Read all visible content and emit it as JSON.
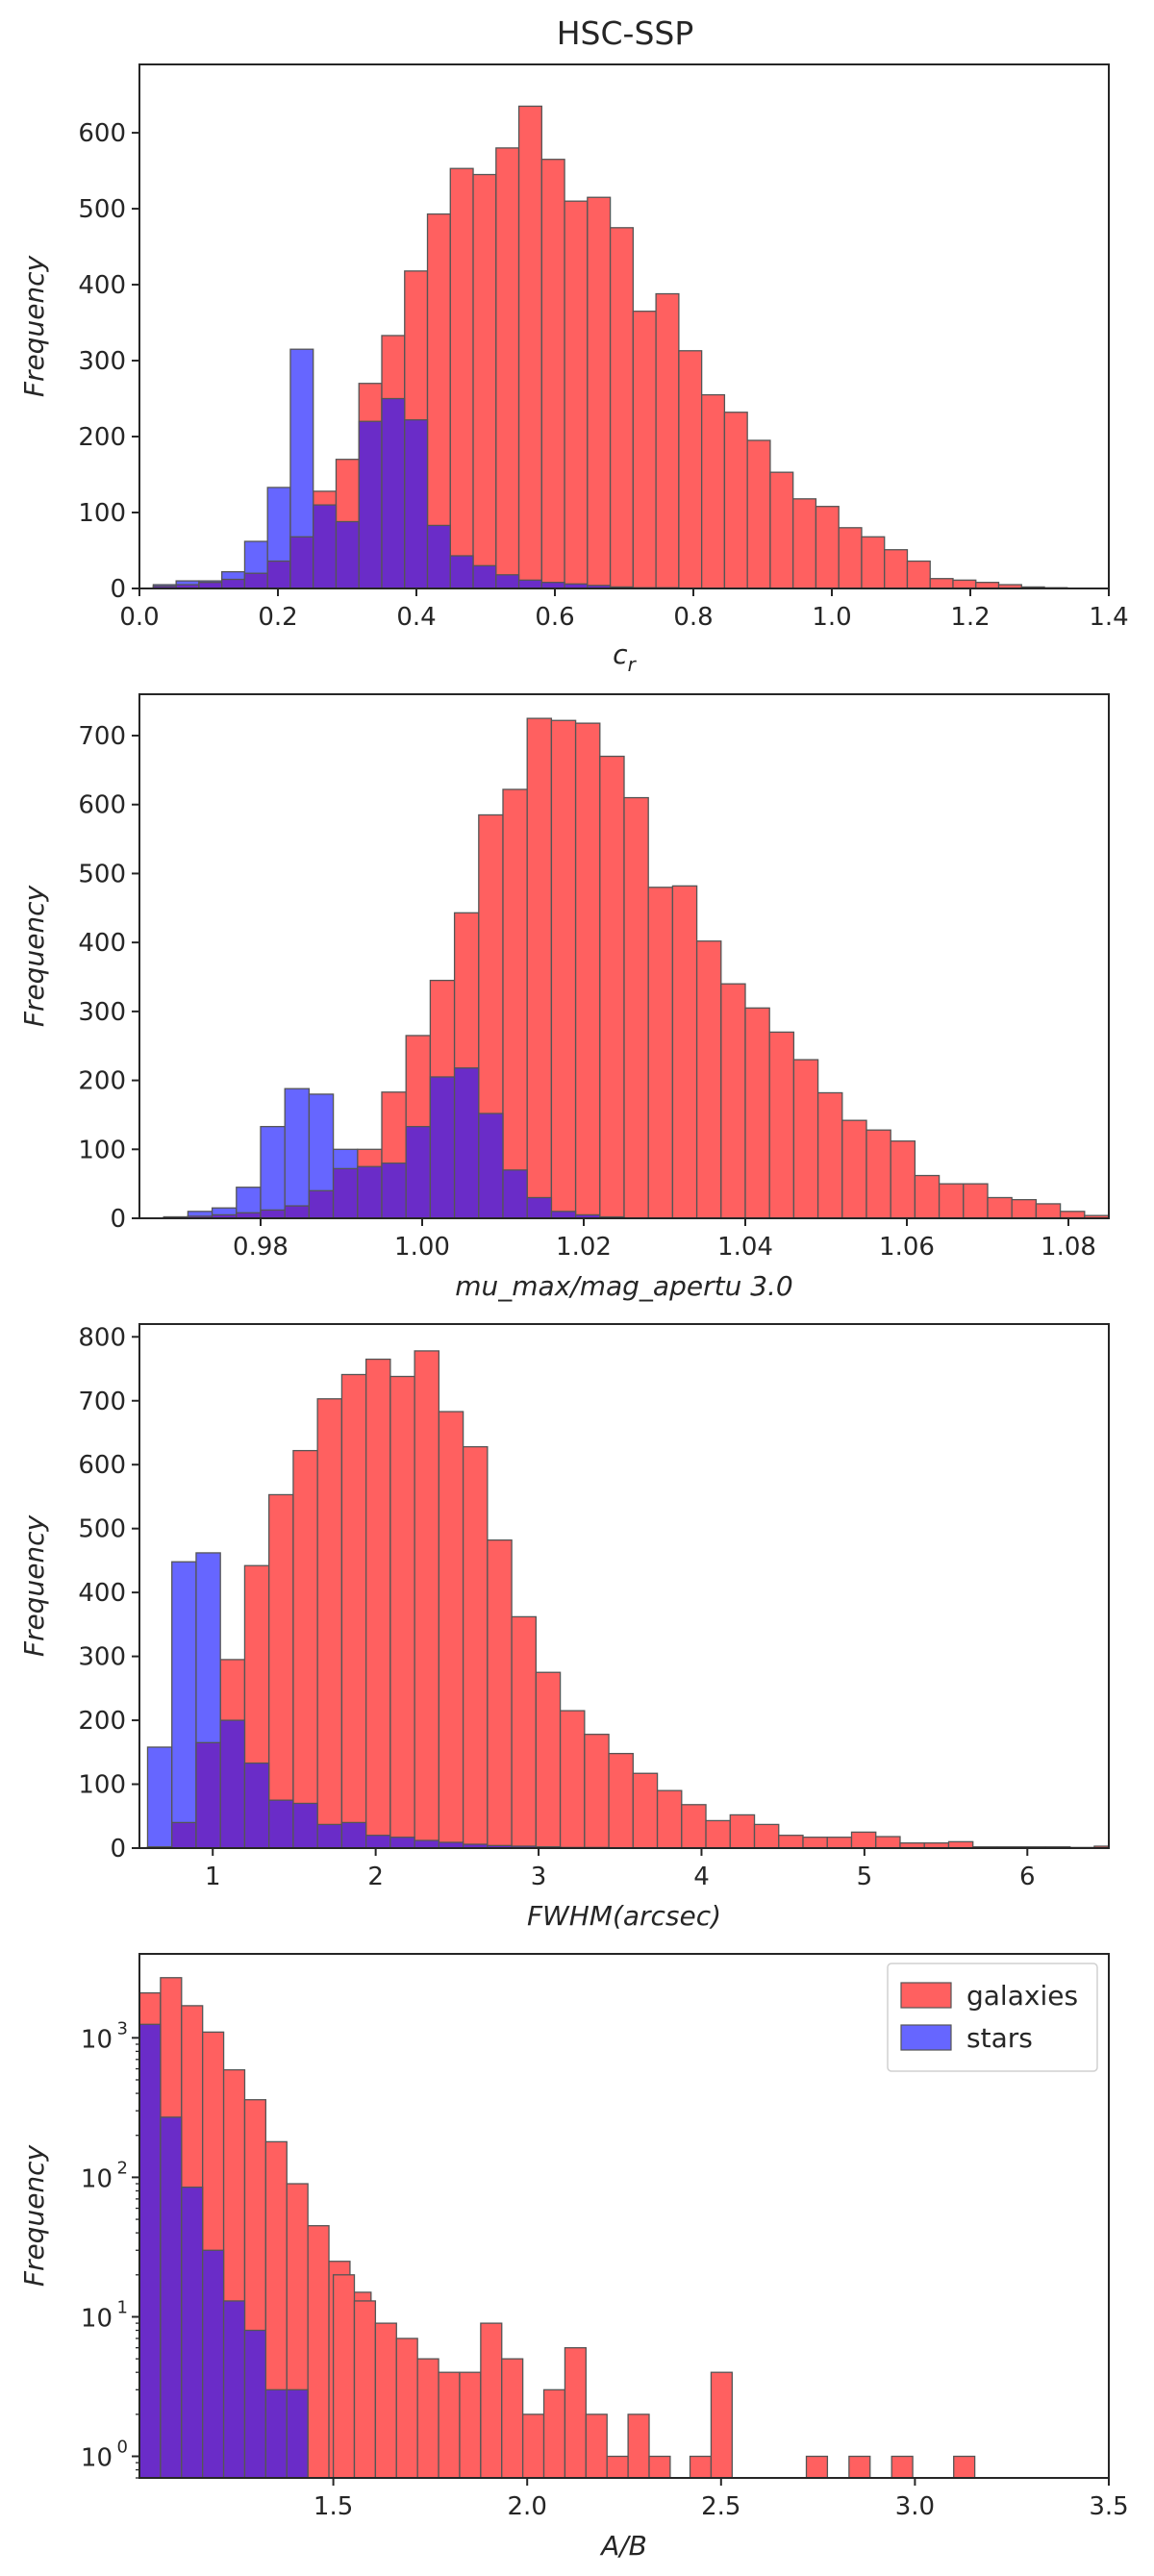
{
  "colors": {
    "galaxies": "#ff6060",
    "stars": "#6666ff",
    "overlap": "#6a2cc8",
    "edge": "#555555",
    "frame": "#262626"
  },
  "chart_data": [
    {
      "type": "bar",
      "title": "HSC-SSP",
      "xlabel_main": "c",
      "xlabel_sub": "r",
      "ylabel": "Frequency",
      "xlim": [
        0.0,
        1.4
      ],
      "ylim": [
        0,
        690
      ],
      "xticks": [
        "0.0",
        "0.2",
        "0.4",
        "0.6",
        "0.8",
        "1.0",
        "1.2",
        "1.4"
      ],
      "xtick_values": [
        0.0,
        0.2,
        0.4,
        0.6,
        0.8,
        1.0,
        1.2,
        1.4
      ],
      "yticks": [
        "0",
        "100",
        "200",
        "300",
        "400",
        "500",
        "600"
      ],
      "ytick_values": [
        0,
        100,
        200,
        300,
        400,
        500,
        600
      ],
      "yscale": "linear",
      "grid": false,
      "series": [
        {
          "name": "galaxies",
          "bin_start": 0.02,
          "bin_width": 0.033,
          "values": [
            3,
            5,
            8,
            12,
            20,
            36,
            68,
            128,
            170,
            270,
            333,
            418,
            493,
            553,
            545,
            580,
            635,
            565,
            510,
            515,
            475,
            365,
            388,
            313,
            255,
            232,
            195,
            153,
            118,
            108,
            80,
            68,
            51,
            36,
            13,
            11,
            8,
            5,
            2,
            1
          ]
        },
        {
          "name": "stars",
          "bin_start": 0.02,
          "bin_width": 0.033,
          "values": [
            5,
            10,
            10,
            22,
            62,
            133,
            315,
            110,
            88,
            220,
            250,
            222,
            83,
            43,
            30,
            18,
            11,
            8,
            6,
            4,
            2,
            1,
            1,
            0,
            0,
            0,
            0,
            0,
            0,
            0,
            0,
            0,
            0,
            0,
            0,
            0,
            0,
            0,
            0,
            0
          ]
        }
      ]
    },
    {
      "type": "bar",
      "xlabel": "mu_max/mag_apertu 3.0",
      "ylabel": "Frequency",
      "xlim": [
        0.965,
        1.085
      ],
      "ylim": [
        0,
        760
      ],
      "xticks": [
        "0.98",
        "1.00",
        "1.02",
        "1.04",
        "1.06",
        "1.08"
      ],
      "xtick_values": [
        0.98,
        1.0,
        1.02,
        1.04,
        1.06,
        1.08
      ],
      "yticks": [
        "0",
        "100",
        "200",
        "300",
        "400",
        "500",
        "600",
        "700"
      ],
      "ytick_values": [
        0,
        100,
        200,
        300,
        400,
        500,
        600,
        700
      ],
      "yscale": "linear",
      "grid": false,
      "series": [
        {
          "name": "galaxies",
          "bin_start": 0.968,
          "bin_width": 0.003,
          "values": [
            2,
            3,
            5,
            8,
            12,
            18,
            40,
            72,
            100,
            183,
            265,
            345,
            443,
            585,
            622,
            725,
            722,
            718,
            670,
            610,
            480,
            482,
            402,
            340,
            305,
            270,
            230,
            182,
            142,
            128,
            112,
            62,
            50,
            50,
            30,
            27,
            21,
            10,
            4,
            1
          ]
        },
        {
          "name": "stars",
          "bin_start": 0.968,
          "bin_width": 0.003,
          "values": [
            2,
            10,
            15,
            45,
            133,
            188,
            180,
            100,
            75,
            80,
            133,
            205,
            218,
            152,
            70,
            30,
            10,
            5,
            2,
            0,
            0,
            0,
            0,
            0,
            0,
            0,
            0,
            0,
            0,
            0,
            0,
            0,
            0,
            0,
            0,
            0,
            0,
            0,
            0,
            0
          ]
        }
      ]
    },
    {
      "type": "bar",
      "xlabel": "FWHM(arcsec)",
      "ylabel": "Frequency",
      "xlim": [
        0.55,
        6.5
      ],
      "ylim": [
        0,
        820
      ],
      "xticks": [
        "1",
        "2",
        "3",
        "4",
        "5",
        "6"
      ],
      "xtick_values": [
        1,
        2,
        3,
        4,
        5,
        6
      ],
      "yticks": [
        "0",
        "100",
        "200",
        "300",
        "400",
        "500",
        "600",
        "700",
        "800"
      ],
      "ytick_values": [
        0,
        100,
        200,
        300,
        400,
        500,
        600,
        700,
        800
      ],
      "yscale": "linear",
      "grid": false,
      "series": [
        {
          "name": "galaxies",
          "bin_start": 0.6,
          "bin_width": 0.149,
          "values": [
            2,
            40,
            165,
            295,
            442,
            553,
            622,
            703,
            741,
            765,
            738,
            778,
            683,
            628,
            482,
            362,
            275,
            215,
            178,
            148,
            117,
            90,
            68,
            43,
            52,
            37,
            20,
            17,
            17,
            25,
            18,
            8,
            8,
            10,
            2,
            2,
            2,
            2,
            1,
            3
          ]
        },
        {
          "name": "stars",
          "bin_start": 0.6,
          "bin_width": 0.149,
          "values": [
            158,
            448,
            462,
            200,
            133,
            75,
            70,
            37,
            40,
            20,
            17,
            12,
            9,
            6,
            4,
            3,
            2,
            1,
            1,
            0,
            0,
            0,
            0,
            0,
            0,
            0,
            0,
            0,
            0,
            0,
            0,
            0,
            0,
            0,
            0,
            0,
            0,
            0,
            0,
            0
          ]
        }
      ]
    },
    {
      "type": "bar",
      "xlabel": "A/B",
      "ylabel": "Frequency",
      "xlim": [
        1.0,
        3.5
      ],
      "ylim": [
        0.7,
        4000
      ],
      "xticks": [
        "1.5",
        "2.0",
        "2.5",
        "3.0",
        "3.5"
      ],
      "xtick_values": [
        1.5,
        2.0,
        2.5,
        3.0,
        3.5
      ],
      "yticks_main": [
        "10",
        "10",
        "10",
        "10"
      ],
      "yticks_exp": [
        "0",
        "1",
        "2",
        "3"
      ],
      "ytick_values": [
        1,
        10,
        100,
        1000
      ],
      "yscale": "log",
      "grid": false,
      "legend": {
        "placement": "top-right",
        "entries": [
          {
            "label": "galaxies",
            "color": "#ff6060"
          },
          {
            "label": "stars",
            "color": "#6666ff"
          }
        ]
      },
      "series": [
        {
          "name": "galaxies",
          "bin_start": 1.0,
          "bin_width": 0.0543,
          "values": [
            2100,
            2700,
            1700,
            1100,
            590,
            360,
            180,
            90,
            45,
            25,
            15,
            8,
            5,
            4,
            2,
            3,
            2,
            2,
            1,
            1,
            0,
            0,
            0,
            0,
            0,
            0,
            0,
            0,
            0,
            0,
            0,
            0,
            0,
            0,
            0,
            0,
            0,
            0,
            0,
            0,
            0,
            0,
            0,
            0,
            0,
            0
          ]
        },
        {
          "name": "stars",
          "bin_start": 1.0,
          "bin_width": 0.0543,
          "values": [
            1250,
            270,
            85,
            30,
            13,
            8,
            3,
            3,
            0,
            0,
            0,
            0,
            0,
            0,
            0,
            0,
            0,
            0,
            0,
            0,
            0,
            0,
            0,
            0,
            0,
            0,
            0,
            0,
            0,
            0,
            0,
            0,
            0,
            0,
            0,
            0,
            0,
            0,
            0,
            0,
            0,
            0,
            0,
            0,
            0,
            0
          ]
        }
      ],
      "tail_bins": [
        {
          "x": 1.5,
          "width": 0.0543,
          "value": 20
        },
        {
          "x": 1.5543,
          "width": 0.0543,
          "value": 13
        },
        {
          "x": 1.6086,
          "width": 0.0543,
          "value": 9
        },
        {
          "x": 1.6629,
          "width": 0.0543,
          "value": 7
        },
        {
          "x": 1.7172,
          "width": 0.0543,
          "value": 5
        },
        {
          "x": 1.7715,
          "width": 0.0543,
          "value": 4
        },
        {
          "x": 1.8258,
          "width": 0.0543,
          "value": 4
        },
        {
          "x": 1.8801,
          "width": 0.0543,
          "value": 9
        },
        {
          "x": 1.9344,
          "width": 0.0543,
          "value": 5
        },
        {
          "x": 1.9887,
          "width": 0.0543,
          "value": 2
        },
        {
          "x": 2.043,
          "width": 0.0543,
          "value": 3
        },
        {
          "x": 2.0973,
          "width": 0.0543,
          "value": 6
        },
        {
          "x": 2.1516,
          "width": 0.0543,
          "value": 2
        },
        {
          "x": 2.2059,
          "width": 0.0543,
          "value": 1
        },
        {
          "x": 2.2602,
          "width": 0.0543,
          "value": 2
        },
        {
          "x": 2.3145,
          "width": 0.0543,
          "value": 1
        },
        {
          "x": 2.42,
          "width": 0.0543,
          "value": 1
        },
        {
          "x": 2.4743,
          "width": 0.0543,
          "value": 4
        },
        {
          "x": 2.72,
          "width": 0.0543,
          "value": 1
        },
        {
          "x": 2.83,
          "width": 0.0543,
          "value": 1
        },
        {
          "x": 2.94,
          "width": 0.0543,
          "value": 1
        },
        {
          "x": 3.1,
          "width": 0.0543,
          "value": 1
        }
      ]
    }
  ]
}
